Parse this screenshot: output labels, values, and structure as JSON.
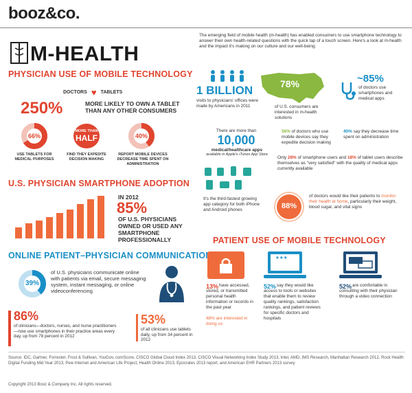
{
  "brand": "booz&co.",
  "title": "M-HEALTH",
  "physician_section": {
    "title": "PHYSICIAN USE OF MOBILE TECHNOLOGY",
    "legend_doctors": "DOCTORS",
    "legend_tablets": "TABLETS",
    "big_pct": "250%",
    "big_pct_text": "MORE LIKELY TO OWN A TABLET THAN ANY OTHER CONSUMERS",
    "stats": [
      {
        "value": "66%",
        "label": "USE TABLETS FOR MEDICAL PURPOSES"
      },
      {
        "value_top": "MORE THAN",
        "value": "HALF",
        "label": "FIND THEY EXPEDITE DECISION MAKING"
      },
      {
        "value": "40%",
        "label": "REPORT MOBILE DEVICES DECREASE TIME SPENT ON ADMINISTRATION"
      }
    ]
  },
  "smartphone_section": {
    "title": "U.S. PHYSICIAN SMARTPHONE ADOPTION",
    "year": "IN 2012",
    "pct": "85%",
    "text": "OF U.S. PHYSICIANS OWNED OR USED ANY SMARTPHONE PROFESSIONALLY",
    "bar_levels": [
      0.25,
      0.35,
      0.42,
      0.5,
      0.6,
      0.68,
      0.8,
      0.92,
      1.0
    ]
  },
  "communication_section": {
    "title": "ONLINE PATIENT–PHYSICIAN COMMUNICATION",
    "pct": "39%",
    "text": "of U.S. physicians communicate online with patients via email, secure messaging system, instant messaging, or online videoconferencing",
    "stat_a_value": "86%",
    "stat_a_text": "of clinicians—doctors, nurses, and nurse practitioners—now use smartphones in their practice areas every day, up from 78 percent in 2012",
    "stat_b_value": "53%",
    "stat_b_text": "of all clinicians use tablets daily, up from 34 percent in 2012"
  },
  "intro": {
    "text": "The emerging field of mobile health (m-health) has enabled consumers to use smartphone technology to answer their own health-related questions with the quick tap of a touch screen. Here's a look at m-health and the impact it's making on our culture and our well-being:"
  },
  "right_stats": {
    "billion": "1 BILLION",
    "billion_text": "visits to physicians' offices were made by Americans in 2011",
    "us_pct": "78%",
    "us_text": "of U.S. consumers are interested in m-health solutions",
    "approx_pct": "~85%",
    "approx_text": "of doctors use smartphones and medical apps",
    "more_than": "There are more than",
    "apps_count": "10,000",
    "apps_text": "medical/healthcare apps",
    "apps_sub": "available in Apple's iTunes App Store",
    "pct_56": "56%",
    "pct_56_text": "of doctors who use mobile devices say they expedite decision making",
    "pct_40": "40%",
    "pct_40_text": "say they decrease time spent on administration",
    "satisfied_only": "Only",
    "satisfied_28": "28%",
    "satisfied_mid": "of smartphone users and",
    "satisfied_18": "18%",
    "satisfied_end": "of tablet users describe themselves as \"very satisfied\" with the quality of medical apps currently available",
    "third_fastest": "It's the third-fastest growing app category for both iPhone and Android phones",
    "pct_88": "88%",
    "pct_88_pre": "of doctors would like their patients to",
    "pct_88_hl": "monitor their health at home",
    "pct_88_post": ", particularly their weight, blood sugar, and vital signs"
  },
  "patient_section": {
    "title": "PATIENT USE OF MOBILE TECHNOLOGY",
    "items": [
      {
        "value": "13%",
        "text": "have accessed, stored, or transmitted personal health information or records in the past year",
        "extra": "48% are interested in doing so"
      },
      {
        "value": "52%",
        "text": "say they would like access to tools or websites that enable them to review quality rankings, satisfaction rankings, and patient reviews for specific doctors and hospitals",
        "extra": ""
      },
      {
        "value": "52%",
        "text": "are comfortable in consulting with their physician through a video connection",
        "extra": ""
      }
    ],
    "password_dots": "***"
  },
  "sources": "Source: IDC, Gartner, Forrester, Frost & Sullivan, YouGov, comScore, CISCO Global Cloud Index 2013, CISCO Visual Networking Index Study 2013, Intel, AMD, IMS Research, Manhattan Research 2012, Rock Health Digital Funding Mid Year 2013, Pew Internet and American Life Project, Health Online 2013, Epocrates 2013 report, and American EHR Partners 2013 survey",
  "copyright": "Copyright 2013 Booz & Company Inc. All rights reserved.",
  "colors": {
    "red": "#e0452f",
    "orange": "#ef6b3b",
    "blue": "#1a8fc7",
    "green": "#8ab840",
    "navy": "#1f4e79"
  },
  "icons": [
    "caduceus-icon",
    "heart-icon",
    "us-map-icon",
    "stethoscope-icon",
    "doctor-icon",
    "lock-icon",
    "laptop-icon",
    "video-chat-icon",
    "app-icons"
  ]
}
